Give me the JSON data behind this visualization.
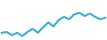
{
  "x": [
    0,
    1,
    2,
    3,
    4,
    5,
    6,
    7,
    8,
    9,
    10,
    11,
    12,
    13,
    14,
    15,
    16,
    17,
    18,
    19,
    20
  ],
  "y": [
    3.5,
    3.4,
    3.8,
    3.5,
    3.9,
    3.4,
    3.0,
    3.5,
    2.8,
    2.2,
    2.7,
    1.9,
    1.5,
    1.8,
    1.2,
    1.0,
    1.4,
    1.1,
    1.5,
    1.8,
    1.6
  ],
  "line_color": "#3baed6",
  "linewidth": 1.6,
  "background_color": "#ffffff",
  "ylim": [
    0.5,
    5.5
  ],
  "xlim": [
    -0.3,
    20.3
  ]
}
